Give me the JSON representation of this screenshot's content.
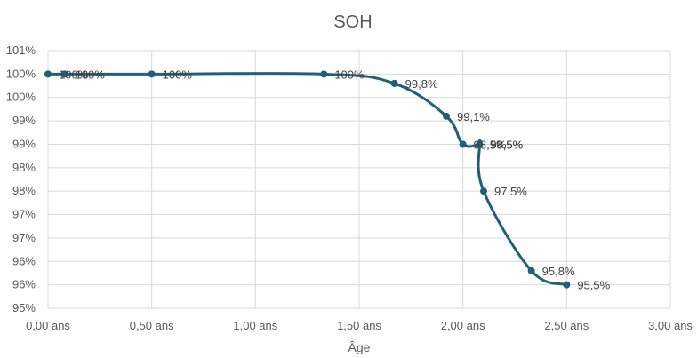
{
  "chart_data": {
    "type": "line",
    "title": "SOH",
    "xlabel": "Âge",
    "ylabel": "",
    "x_ticks": [
      "0,00 ans",
      "0,50 ans",
      "1,00 ans",
      "1,50 ans",
      "2,00 ans",
      "2,50 ans",
      "3,00 ans"
    ],
    "x_tick_values": [
      0,
      0.5,
      1.0,
      1.5,
      2.0,
      2.5,
      3.0
    ],
    "y_ticks": [
      "95%",
      "96%",
      "96%",
      "97%",
      "97%",
      "98%",
      "98%",
      "99%",
      "99%",
      "100%",
      "100%",
      "101%"
    ],
    "xlim": [
      0,
      3.0
    ],
    "ylim": [
      95.0,
      100.5
    ],
    "grid": true,
    "smooth": true,
    "series": [
      {
        "x": [
          0.0,
          0.08,
          0.5,
          1.33,
          1.67,
          1.92,
          2.0,
          2.08,
          2.08,
          2.1,
          2.33,
          2.5
        ],
        "y": [
          100.0,
          100.0,
          100.0,
          100.0,
          99.8,
          99.1,
          98.5,
          98.5,
          98.5,
          97.5,
          95.8,
          95.5
        ],
        "labels": [
          "100%",
          "100%",
          "100%",
          "100%",
          "99,8%",
          "99,1%",
          "98,5%",
          "98,5%",
          "98,5%",
          "97,5%",
          "95,8%",
          "95,5%"
        ],
        "color": "#1F5F7A"
      }
    ]
  }
}
